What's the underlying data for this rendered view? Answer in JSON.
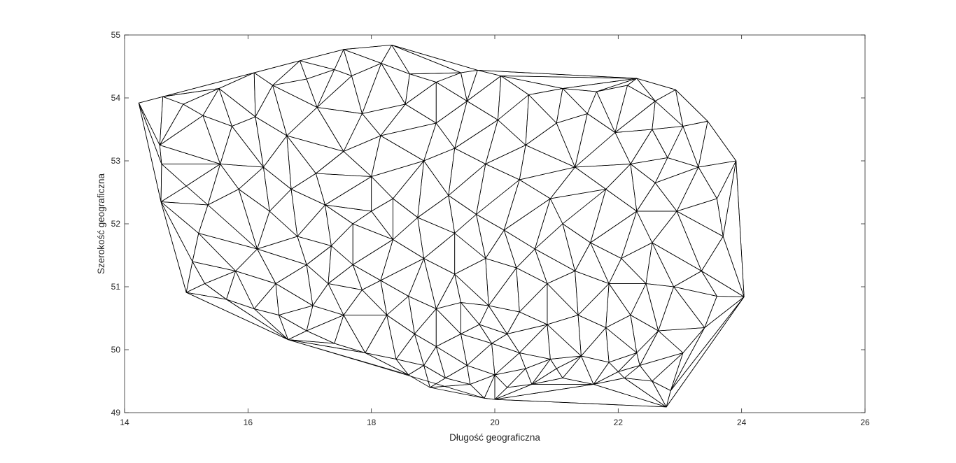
{
  "chart_data": {
    "type": "triangulation",
    "title": "",
    "xlabel": "Długość geograficzna",
    "ylabel": "Szerokość geograficzna",
    "xlim": [
      14,
      26
    ],
    "ylim": [
      49,
      55
    ],
    "xticks": [
      14,
      16,
      18,
      20,
      22,
      24,
      26
    ],
    "yticks": [
      49,
      50,
      51,
      52,
      53,
      54,
      55
    ],
    "grid": false,
    "box": true,
    "colors": {
      "axes": "#262626",
      "mesh": "#000000",
      "background": "#ffffff"
    },
    "hull": [
      [
        14.23,
        53.92
      ],
      [
        14.62,
        54.02
      ],
      [
        16.1,
        54.4
      ],
      [
        16.84,
        54.59
      ],
      [
        17.55,
        54.77
      ],
      [
        18.33,
        54.84
      ],
      [
        19.72,
        54.44
      ],
      [
        22.3,
        54.31
      ],
      [
        22.93,
        54.13
      ],
      [
        23.45,
        53.63
      ],
      [
        23.91,
        53.0
      ],
      [
        24.04,
        50.84
      ],
      [
        22.78,
        49.09
      ],
      [
        20.0,
        49.21
      ],
      [
        19.83,
        49.23
      ],
      [
        16.65,
        50.16
      ],
      [
        15.0,
        50.91
      ],
      [
        14.59,
        52.35
      ]
    ],
    "points": [
      [
        14.57,
        53.25
      ],
      [
        14.6,
        52.95
      ],
      [
        14.95,
        53.9
      ],
      [
        15.27,
        53.72
      ],
      [
        15.53,
        54.15
      ],
      [
        15.74,
        53.55
      ],
      [
        16.12,
        53.7
      ],
      [
        16.4,
        54.2
      ],
      [
        16.63,
        53.4
      ],
      [
        16.95,
        54.3
      ],
      [
        17.4,
        54.45
      ],
      [
        17.12,
        53.85
      ],
      [
        17.68,
        54.35
      ],
      [
        18.16,
        54.55
      ],
      [
        18.62,
        54.38
      ],
      [
        19.05,
        54.25
      ],
      [
        19.45,
        54.4
      ],
      [
        20.1,
        54.35
      ],
      [
        20.55,
        54.05
      ],
      [
        21.1,
        54.15
      ],
      [
        21.65,
        54.1
      ],
      [
        22.15,
        54.2
      ],
      [
        22.6,
        53.95
      ],
      [
        23.05,
        53.55
      ],
      [
        22.55,
        53.5
      ],
      [
        22.8,
        53.05
      ],
      [
        23.3,
        52.9
      ],
      [
        23.6,
        52.4
      ],
      [
        23.7,
        51.8
      ],
      [
        23.35,
        51.25
      ],
      [
        23.6,
        50.85
      ],
      [
        23.4,
        50.35
      ],
      [
        23.05,
        49.95
      ],
      [
        22.55,
        49.5
      ],
      [
        22.85,
        49.35
      ],
      [
        22.1,
        49.55
      ],
      [
        21.6,
        49.45
      ],
      [
        21.1,
        49.55
      ],
      [
        20.6,
        49.45
      ],
      [
        20.2,
        49.4
      ],
      [
        19.6,
        49.45
      ],
      [
        19.2,
        49.55
      ],
      [
        18.85,
        49.75
      ],
      [
        18.4,
        49.85
      ],
      [
        17.9,
        49.95
      ],
      [
        17.4,
        50.1
      ],
      [
        16.95,
        50.3
      ],
      [
        16.5,
        50.55
      ],
      [
        16.1,
        50.65
      ],
      [
        15.65,
        50.8
      ],
      [
        15.3,
        51.05
      ],
      [
        15.1,
        51.4
      ],
      [
        15.2,
        51.85
      ],
      [
        15.35,
        52.3
      ],
      [
        15.0,
        52.6
      ],
      [
        15.55,
        52.95
      ],
      [
        15.85,
        52.55
      ],
      [
        16.25,
        52.9
      ],
      [
        16.7,
        52.55
      ],
      [
        16.35,
        52.2
      ],
      [
        16.8,
        51.8
      ],
      [
        16.15,
        51.6
      ],
      [
        15.8,
        51.25
      ],
      [
        16.45,
        51.05
      ],
      [
        16.95,
        51.35
      ],
      [
        17.3,
        51.05
      ],
      [
        17.05,
        50.7
      ],
      [
        17.55,
        50.55
      ],
      [
        17.85,
        50.95
      ],
      [
        18.25,
        50.55
      ],
      [
        18.7,
        50.25
      ],
      [
        19.05,
        50.05
      ],
      [
        19.45,
        50.25
      ],
      [
        19.95,
        50.1
      ],
      [
        20.4,
        49.95
      ],
      [
        20.9,
        49.85
      ],
      [
        21.4,
        49.9
      ],
      [
        21.85,
        49.8
      ],
      [
        22.3,
        49.95
      ],
      [
        22.65,
        50.3
      ],
      [
        22.2,
        50.55
      ],
      [
        21.8,
        50.35
      ],
      [
        21.35,
        50.55
      ],
      [
        20.85,
        50.4
      ],
      [
        20.4,
        50.6
      ],
      [
        19.9,
        50.7
      ],
      [
        19.45,
        50.75
      ],
      [
        19.05,
        50.65
      ],
      [
        18.6,
        50.85
      ],
      [
        18.15,
        51.1
      ],
      [
        17.7,
        51.35
      ],
      [
        17.35,
        51.65
      ],
      [
        17.7,
        52.0
      ],
      [
        17.25,
        52.3
      ],
      [
        17.1,
        52.8
      ],
      [
        17.55,
        53.15
      ],
      [
        18.0,
        52.75
      ],
      [
        18.15,
        53.4
      ],
      [
        17.85,
        53.75
      ],
      [
        18.55,
        53.9
      ],
      [
        19.05,
        53.6
      ],
      [
        19.55,
        53.95
      ],
      [
        20.05,
        53.65
      ],
      [
        20.5,
        53.25
      ],
      [
        21.0,
        53.6
      ],
      [
        21.5,
        53.75
      ],
      [
        21.95,
        53.45
      ],
      [
        22.2,
        52.95
      ],
      [
        22.6,
        52.65
      ],
      [
        22.95,
        52.2
      ],
      [
        22.3,
        52.2
      ],
      [
        21.8,
        52.55
      ],
      [
        21.3,
        52.9
      ],
      [
        20.9,
        52.4
      ],
      [
        20.4,
        52.7
      ],
      [
        19.85,
        52.95
      ],
      [
        19.35,
        53.2
      ],
      [
        18.85,
        53.0
      ],
      [
        18.35,
        52.4
      ],
      [
        18.75,
        52.1
      ],
      [
        19.25,
        52.45
      ],
      [
        19.7,
        52.15
      ],
      [
        20.15,
        51.9
      ],
      [
        20.65,
        51.6
      ],
      [
        21.1,
        52.0
      ],
      [
        21.55,
        51.7
      ],
      [
        22.05,
        51.45
      ],
      [
        22.55,
        51.7
      ],
      [
        22.9,
        51.0
      ],
      [
        22.45,
        51.05
      ],
      [
        21.85,
        51.05
      ],
      [
        21.3,
        51.25
      ],
      [
        20.85,
        51.05
      ],
      [
        20.35,
        51.3
      ],
      [
        19.85,
        51.45
      ],
      [
        19.35,
        51.2
      ],
      [
        18.85,
        51.45
      ],
      [
        18.35,
        51.75
      ],
      [
        18.0,
        52.2
      ],
      [
        19.35,
        51.85
      ],
      [
        19.75,
        50.4
      ],
      [
        20.2,
        50.25
      ],
      [
        19.55,
        49.75
      ],
      [
        20.0,
        49.6
      ],
      [
        20.5,
        49.7
      ],
      [
        21.0,
        49.7
      ],
      [
        22.0,
        49.65
      ],
      [
        22.35,
        49.75
      ],
      [
        18.95,
        49.4
      ],
      [
        18.6,
        49.6
      ]
    ]
  }
}
